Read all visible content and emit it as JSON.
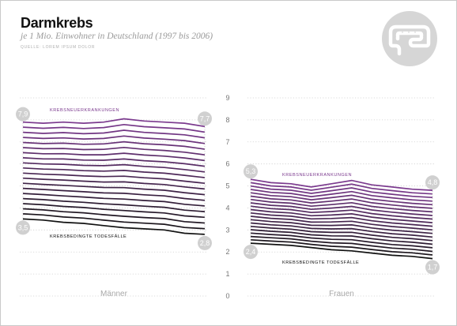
{
  "header": {
    "title": "Darmkrebs",
    "subtitle": "je 1 Mio. Einwohner in Deutschland (1997 bis 2006)",
    "source": "QUELLE: LOREM IPSUM DOLOR"
  },
  "icon": "intestine-icon",
  "colors": {
    "incidence": "#7b3a8e",
    "mortality": "#111111",
    "bubble": "#d0d0d0",
    "grid": "#cfcfcf"
  },
  "chart_data": {
    "type": "area",
    "ylim": [
      0,
      9
    ],
    "yticks": [
      "0",
      "1",
      "2",
      "3",
      "4",
      "5",
      "6",
      "7",
      "8",
      "9"
    ],
    "panels": [
      {
        "label": "Männer",
        "incidence_label": "KREBSNEUERKRANKUNGEN",
        "mortality_label": "KREBSBEDINGTE TODESFÄLLE",
        "start_incidence_text": "7,9",
        "end_incidence_text": "7,7",
        "start_mortality_text": "3,5",
        "end_mortality_text": "2,8",
        "incidence": [
          7.9,
          7.85,
          7.9,
          7.85,
          7.9,
          8.05,
          7.95,
          7.9,
          7.85,
          7.7
        ],
        "mortality": [
          3.5,
          3.45,
          3.35,
          3.3,
          3.2,
          3.1,
          3.05,
          3.0,
          2.85,
          2.8
        ]
      },
      {
        "label": "Frauen",
        "incidence_label": "KREBSNEUERKRANKUNGEN",
        "mortality_label": "KREBSBEDINGTE TODESFÄLLE",
        "start_incidence_text": "5,3",
        "end_incidence_text": "4,8",
        "start_mortality_text": "2,4",
        "end_mortality_text": "1,7",
        "incidence": [
          5.3,
          5.15,
          5.1,
          4.95,
          5.1,
          5.25,
          5.05,
          4.95,
          4.85,
          4.8
        ],
        "mortality": [
          2.4,
          2.35,
          2.3,
          2.2,
          2.1,
          2.05,
          1.95,
          1.85,
          1.8,
          1.7
        ]
      }
    ]
  }
}
